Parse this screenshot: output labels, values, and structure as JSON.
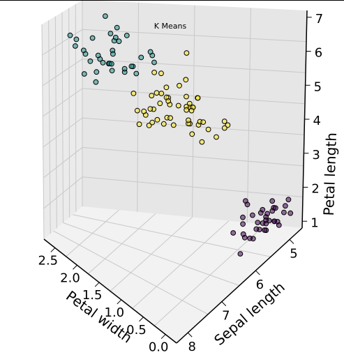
{
  "chart_data": {
    "type": "scatter",
    "projection": "3d",
    "title": "K Means",
    "xlabel": "Petal width",
    "ylabel": "Sepal length",
    "zlabel": "Petal length",
    "xticks": [
      "2.5",
      "2.0",
      "1.5",
      "1.0",
      "0.5",
      "0.0"
    ],
    "yticks": [
      "5",
      "6",
      "7",
      "8"
    ],
    "zticks": [
      "1",
      "2",
      "3",
      "4",
      "5",
      "6",
      "7"
    ],
    "grid": true,
    "colors": {
      "cluster_0": "#440154",
      "cluster_1": "#21918c",
      "cluster_2": "#fde725"
    },
    "series": [
      {
        "cluster": 0,
        "color": "#440154",
        "points": [
          [
            0.1,
            4.8,
            1.4
          ],
          [
            0.2,
            4.3,
            1.5
          ],
          [
            0.2,
            5.0,
            1.6
          ],
          [
            0.3,
            4.6,
            1.4
          ],
          [
            0.2,
            5.1,
            1.5
          ],
          [
            0.4,
            5.4,
            1.7
          ],
          [
            0.2,
            4.9,
            1.4
          ],
          [
            0.1,
            4.6,
            1.5
          ],
          [
            0.2,
            5.2,
            1.4
          ],
          [
            0.3,
            5.0,
            1.6
          ],
          [
            0.4,
            5.7,
            1.5
          ],
          [
            0.2,
            5.4,
            1.3
          ],
          [
            0.1,
            4.4,
            1.3
          ],
          [
            0.2,
            4.8,
            1.6
          ],
          [
            0.6,
            5.0,
            1.6
          ],
          [
            0.2,
            5.3,
            1.5
          ],
          [
            0.1,
            4.9,
            1.5
          ],
          [
            0.2,
            5.1,
            1.9
          ],
          [
            0.3,
            5.5,
            1.3
          ],
          [
            0.2,
            4.7,
            1.6
          ],
          [
            0.2,
            5.0,
            1.2
          ],
          [
            0.4,
            5.1,
            1.5
          ],
          [
            0.2,
            5.8,
            1.2
          ],
          [
            0.1,
            5.2,
            1.5
          ],
          [
            0.3,
            4.8,
            1.4
          ],
          [
            0.2,
            5.5,
            1.4
          ],
          [
            0.2,
            4.6,
            1.0
          ],
          [
            0.5,
            5.1,
            1.7
          ],
          [
            0.2,
            5.0,
            1.4
          ],
          [
            0.4,
            5.4,
            1.5
          ],
          [
            0.2,
            4.4,
            1.4
          ],
          [
            0.2,
            5.7,
            1.7
          ],
          [
            0.1,
            4.9,
            1.5
          ],
          [
            0.3,
            5.1,
            1.4
          ],
          [
            0.2,
            5.0,
            1.5
          ],
          [
            0.2,
            4.8,
            1.9
          ]
        ]
      },
      {
        "cluster": 1,
        "color": "#21918c",
        "points": [
          [
            2.5,
            6.3,
            6.0
          ],
          [
            1.9,
            5.8,
            5.1
          ],
          [
            2.1,
            7.1,
            5.9
          ],
          [
            1.8,
            6.3,
            5.6
          ],
          [
            2.2,
            6.5,
            5.8
          ],
          [
            2.1,
            7.6,
            6.6
          ],
          [
            1.8,
            7.3,
            6.3
          ],
          [
            2.5,
            7.2,
            6.1
          ],
          [
            2.0,
            6.5,
            5.1
          ],
          [
            1.9,
            6.4,
            5.3
          ],
          [
            2.1,
            6.8,
            5.5
          ],
          [
            2.0,
            5.7,
            5.0
          ],
          [
            2.4,
            5.8,
            5.1
          ],
          [
            2.3,
            6.4,
            5.3
          ],
          [
            2.2,
            7.7,
            6.7
          ],
          [
            2.3,
            7.7,
            6.9
          ],
          [
            2.0,
            6.9,
            5.7
          ],
          [
            2.0,
            7.7,
            6.7
          ],
          [
            2.1,
            6.7,
            5.7
          ],
          [
            1.8,
            7.2,
            6.0
          ],
          [
            2.1,
            7.4,
            6.1
          ],
          [
            1.9,
            7.9,
            6.4
          ],
          [
            2.3,
            6.3,
            5.6
          ],
          [
            2.4,
            6.1,
            5.6
          ],
          [
            1.8,
            7.7,
            6.1
          ],
          [
            2.4,
            6.3,
            5.6
          ],
          [
            2.3,
            6.9,
            5.1
          ],
          [
            2.5,
            6.7,
            5.7
          ],
          [
            2.3,
            6.7,
            5.2
          ],
          [
            1.9,
            6.3,
            5.0
          ],
          [
            2.0,
            6.5,
            5.2
          ],
          [
            2.3,
            6.2,
            5.4
          ],
          [
            1.8,
            5.9,
            5.1
          ],
          [
            2.2,
            7.0,
            5.8
          ],
          [
            1.8,
            6.6,
            5.6
          ]
        ]
      },
      {
        "cluster": 2,
        "color": "#fde725",
        "points": [
          [
            1.4,
            7.0,
            4.7
          ],
          [
            1.5,
            6.4,
            4.5
          ],
          [
            1.5,
            6.9,
            4.9
          ],
          [
            1.3,
            5.5,
            4.0
          ],
          [
            1.5,
            6.5,
            4.6
          ],
          [
            1.3,
            5.7,
            4.5
          ],
          [
            1.6,
            6.3,
            4.7
          ],
          [
            1.0,
            4.9,
            3.3
          ],
          [
            1.3,
            6.6,
            4.6
          ],
          [
            1.4,
            5.2,
            3.9
          ],
          [
            1.0,
            5.0,
            3.5
          ],
          [
            1.5,
            5.9,
            4.2
          ],
          [
            1.0,
            6.0,
            4.0
          ],
          [
            1.4,
            6.1,
            4.7
          ],
          [
            1.3,
            5.6,
            3.6
          ],
          [
            1.4,
            6.7,
            4.4
          ],
          [
            1.5,
            5.6,
            4.5
          ],
          [
            1.0,
            5.8,
            4.1
          ],
          [
            1.5,
            6.2,
            4.5
          ],
          [
            1.1,
            5.6,
            3.9
          ],
          [
            1.8,
            5.9,
            4.8
          ],
          [
            1.3,
            6.1,
            4.0
          ],
          [
            1.5,
            6.3,
            4.9
          ],
          [
            1.2,
            6.1,
            4.7
          ],
          [
            1.3,
            6.4,
            4.3
          ],
          [
            1.4,
            6.6,
            4.4
          ],
          [
            1.4,
            6.8,
            4.8
          ],
          [
            1.7,
            6.7,
            5.0
          ],
          [
            1.5,
            6.0,
            4.5
          ],
          [
            1.0,
            5.7,
            3.5
          ],
          [
            1.1,
            5.5,
            3.8
          ],
          [
            1.0,
            5.5,
            3.7
          ],
          [
            1.2,
            5.8,
            3.9
          ],
          [
            1.6,
            6.0,
            5.1
          ],
          [
            1.5,
            5.4,
            4.5
          ],
          [
            1.6,
            6.0,
            4.5
          ],
          [
            1.5,
            6.7,
            4.7
          ],
          [
            1.3,
            6.3,
            4.4
          ],
          [
            1.3,
            5.6,
            4.1
          ],
          [
            1.3,
            5.5,
            4.0
          ],
          [
            1.2,
            5.5,
            4.4
          ],
          [
            1.4,
            6.1,
            4.6
          ],
          [
            1.2,
            5.8,
            4.0
          ],
          [
            1.0,
            5.0,
            3.3
          ],
          [
            1.3,
            5.6,
            4.2
          ],
          [
            1.2,
            5.7,
            4.2
          ],
          [
            1.3,
            5.7,
            4.2
          ],
          [
            1.3,
            6.2,
            4.3
          ],
          [
            1.1,
            5.1,
            3.0
          ],
          [
            1.3,
            5.7,
            4.1
          ],
          [
            1.8,
            4.9,
            4.5
          ],
          [
            1.5,
            6.0,
            4.8
          ]
        ]
      }
    ]
  }
}
